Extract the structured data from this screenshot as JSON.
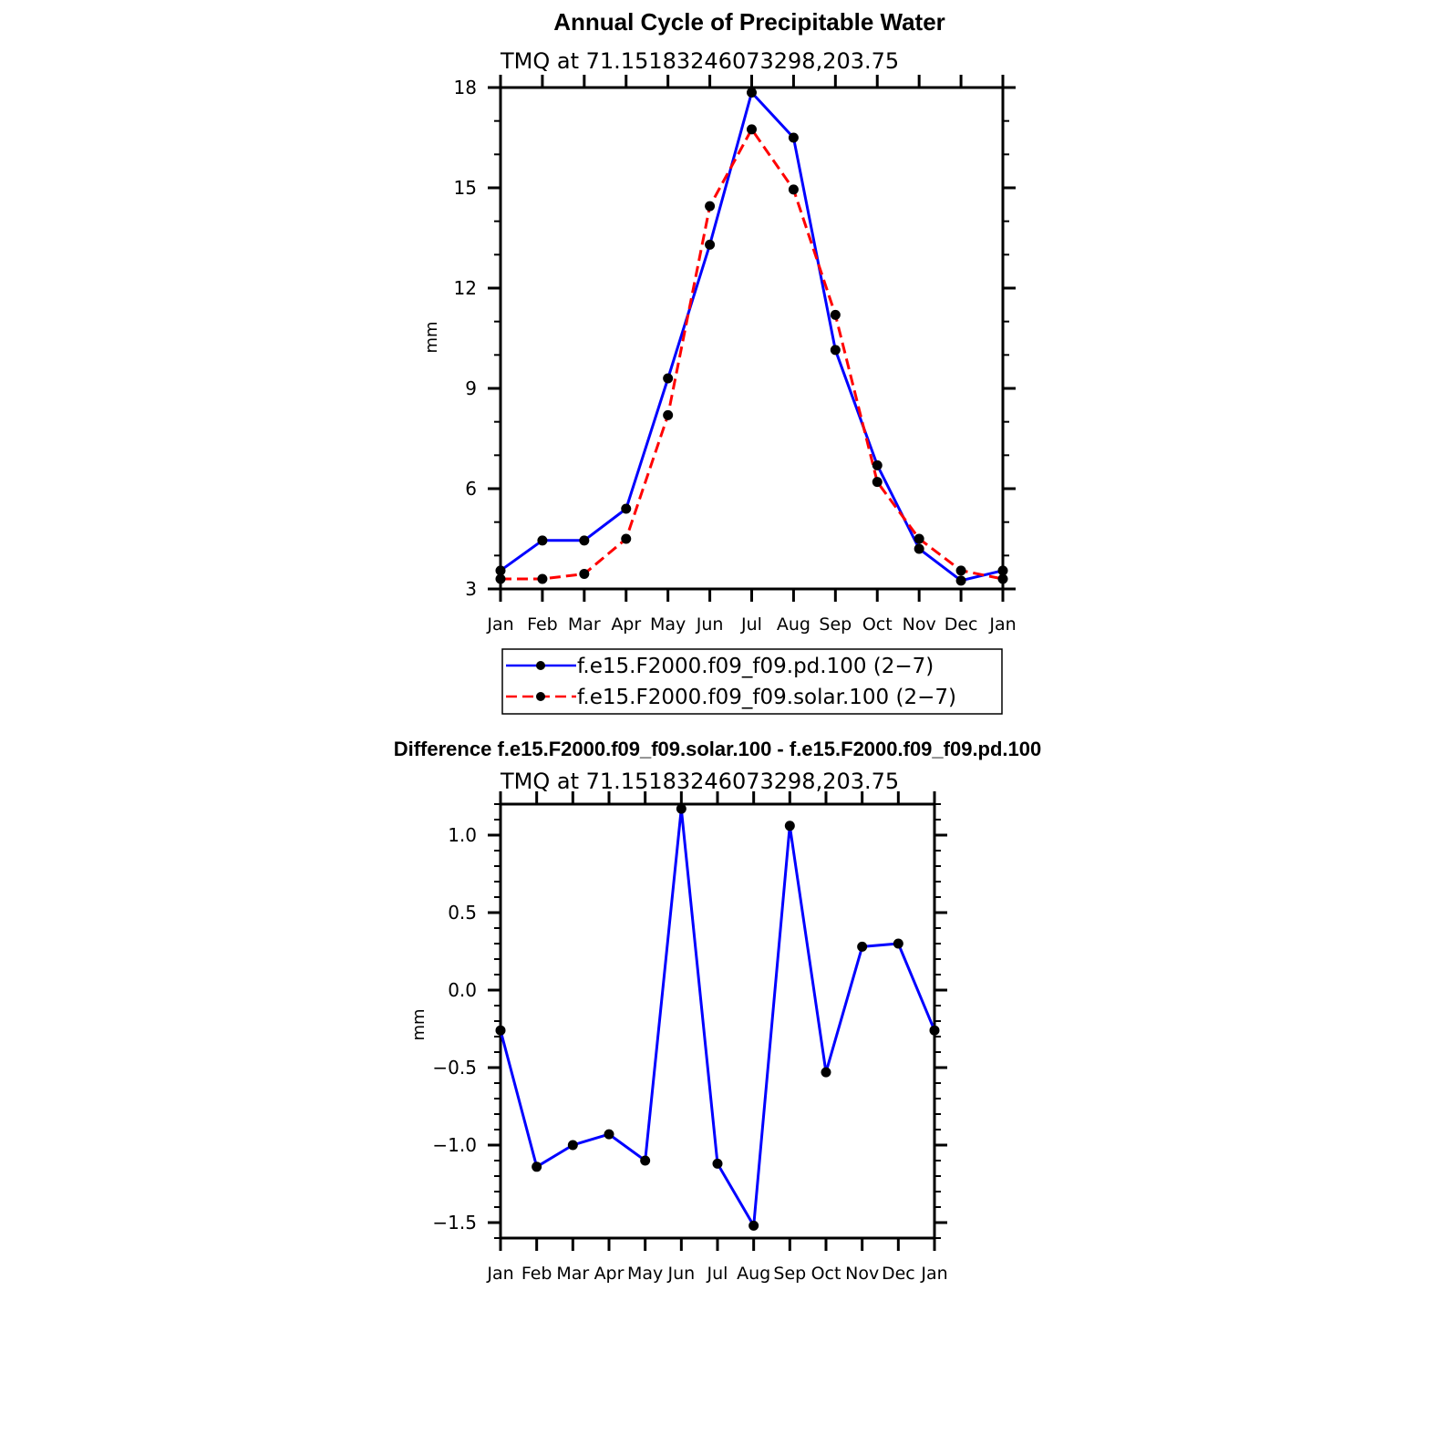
{
  "chart_data": [
    {
      "type": "line",
      "title": "Annual Cycle of Precipitable Water",
      "subtitle": "TMQ at 71.15183246073298,203.75",
      "ylabel": "mm",
      "xlabel": "",
      "categories": [
        "Jan",
        "Feb",
        "Mar",
        "Apr",
        "May",
        "Jun",
        "Jul",
        "Aug",
        "Sep",
        "Oct",
        "Nov",
        "Dec",
        "Jan"
      ],
      "ylim": [
        3,
        18
      ],
      "yticks": [
        3,
        6,
        9,
        12,
        15,
        18
      ],
      "yticks_labels": [
        "3",
        "6",
        "9",
        "12",
        "15",
        "18"
      ],
      "grid": false,
      "legend_position": "below",
      "series": [
        {
          "name": "f.e15.F2000.f09_f09.pd.100 (2−7)",
          "color": "#0000ff",
          "dash": "solid",
          "values": [
            3.55,
            4.45,
            4.45,
            5.4,
            9.3,
            13.3,
            17.85,
            16.5,
            10.15,
            6.7,
            4.2,
            3.25,
            3.55
          ]
        },
        {
          "name": "f.e15.F2000.f09_f09.solar.100 (2−7)",
          "color": "#ff0000",
          "dash": "dashed",
          "values": [
            3.3,
            3.3,
            3.45,
            4.5,
            8.2,
            14.45,
            16.75,
            14.95,
            11.2,
            6.2,
            4.5,
            3.55,
            3.3
          ]
        }
      ],
      "marker_color": "#000000"
    },
    {
      "type": "line",
      "title": "Difference f.e15.F2000.f09_f09.solar.100 - f.e15.F2000.f09_f09.pd.100",
      "subtitle": "TMQ at 71.15183246073298,203.75",
      "ylabel": "mm",
      "xlabel": "",
      "categories": [
        "Jan",
        "Feb",
        "Mar",
        "Apr",
        "May",
        "Jun",
        "Jul",
        "Aug",
        "Sep",
        "Oct",
        "Nov",
        "Dec",
        "Jan"
      ],
      "ylim": [
        -1.6,
        1.2
      ],
      "yticks": [
        -1.5,
        -1.0,
        -0.5,
        0.0,
        0.5,
        1.0
      ],
      "yticks_labels": [
        "−1.5",
        "−1.0",
        "−0.5",
        "0.0",
        "0.5",
        "1.0"
      ],
      "grid": false,
      "series": [
        {
          "color": "#0000ff",
          "dash": "solid",
          "values": [
            -0.26,
            -1.14,
            -1.0,
            -0.93,
            -1.1,
            1.17,
            -1.12,
            -1.52,
            1.06,
            -0.53,
            0.28,
            0.3,
            -0.26
          ]
        }
      ],
      "marker_color": "#000000"
    }
  ]
}
